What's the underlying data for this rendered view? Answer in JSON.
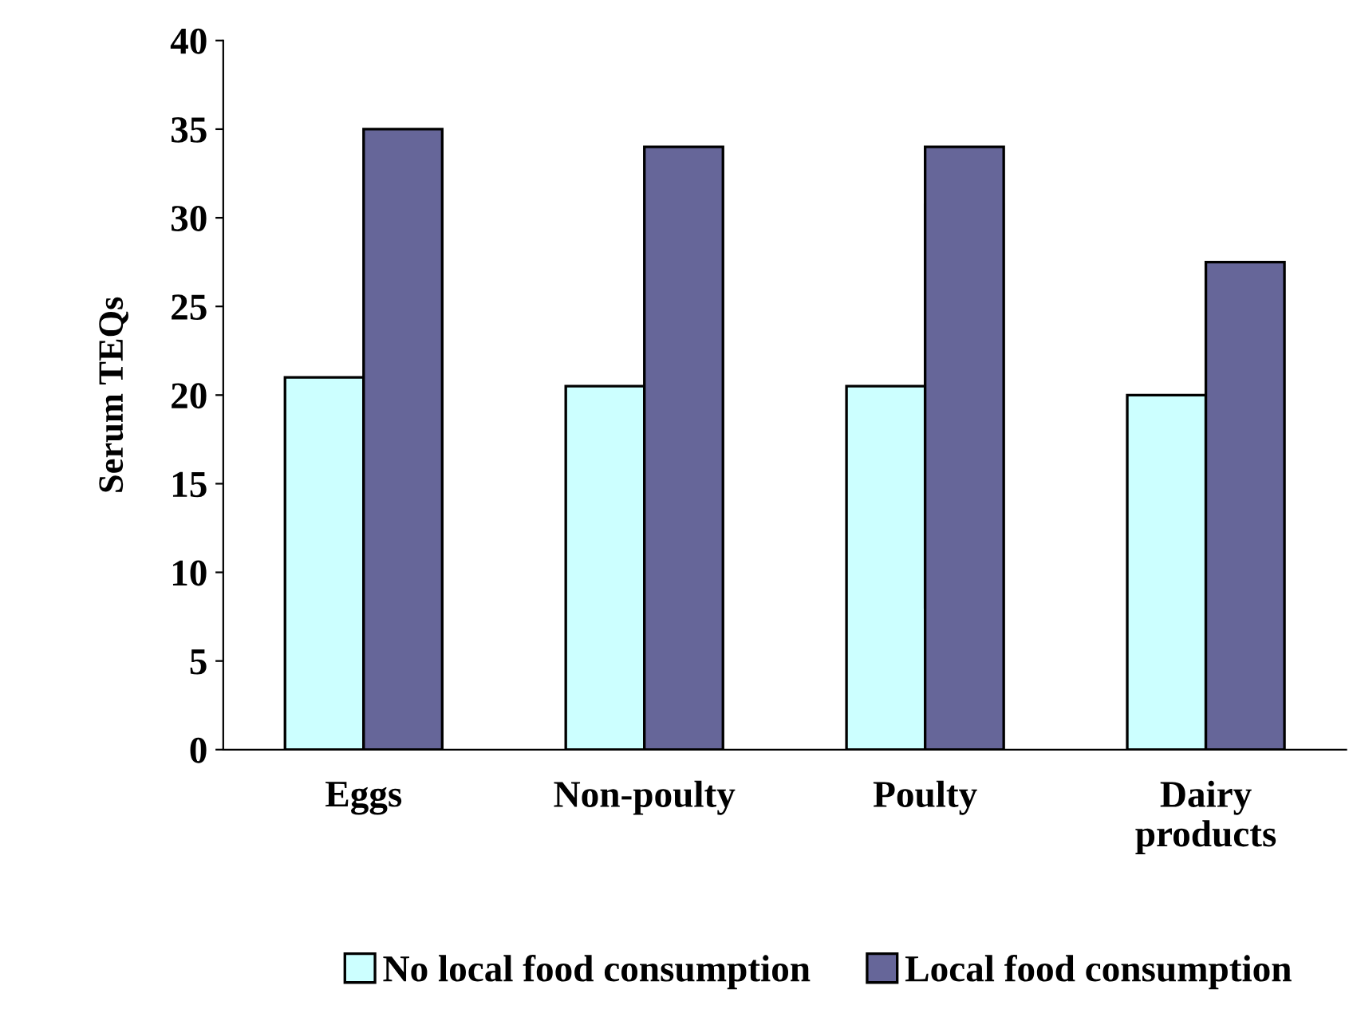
{
  "chart_data": {
    "type": "bar",
    "ylabel": "Serum TEQs",
    "categories": [
      "Eggs",
      "Non-poulty",
      "Poulty",
      "Dairy\nproducts"
    ],
    "series": [
      {
        "name": "No local food consumption",
        "color": "#ccffff",
        "values": [
          21,
          20.5,
          20.5,
          20
        ]
      },
      {
        "name": "Local food consumption",
        "color": "#666699",
        "values": [
          35,
          34,
          34,
          27.5
        ]
      }
    ],
    "ylim": [
      0,
      40
    ],
    "yticks": [
      0,
      5,
      10,
      15,
      20,
      25,
      30,
      35,
      40
    ],
    "grid": false,
    "legend": "bottom"
  }
}
